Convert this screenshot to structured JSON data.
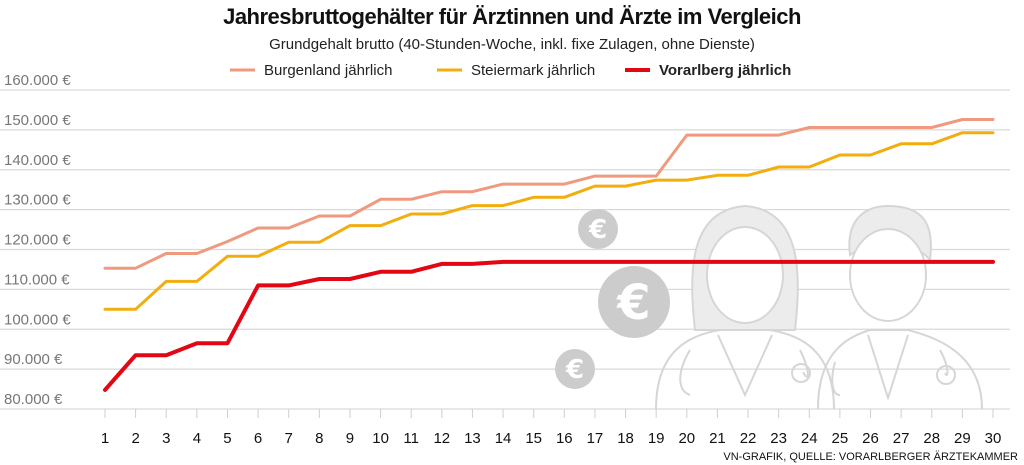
{
  "chart_data": {
    "type": "line",
    "title": "Jahresbruttogehälter für Ärztinnen und Ärzte im Vergleich",
    "subtitle": "Grundgehalt brutto (40-Stunden-Woche, inkl. fixe Zulagen, ohne Dienste)",
    "source": "VN-GRAFIK, QUELLE: VORARLBERGER ÄRZTEKAMMER",
    "xlabel": "",
    "ylabel": "",
    "x": [
      1,
      2,
      3,
      4,
      5,
      6,
      7,
      8,
      9,
      10,
      11,
      12,
      13,
      14,
      15,
      16,
      17,
      18,
      19,
      20,
      21,
      22,
      23,
      24,
      25,
      26,
      27,
      28,
      29,
      30
    ],
    "ylim": [
      80000,
      160000
    ],
    "yticks": [
      80000,
      90000,
      100000,
      110000,
      120000,
      130000,
      140000,
      150000,
      160000
    ],
    "ytick_labels": [
      "80.000 €",
      "90.000 €",
      "100.000 €",
      "110.000 €",
      "120.000 €",
      "130.000 €",
      "140.000 €",
      "150.000 €",
      "160.000 €"
    ],
    "grid": true,
    "legend_position": "top",
    "series": [
      {
        "name": "Burgenland jährlich",
        "color": "#ef9a7e",
        "bold": false,
        "values": [
          115300,
          115300,
          119000,
          119000,
          122000,
          125400,
          125400,
          128400,
          128400,
          132600,
          132600,
          134500,
          134500,
          136400,
          136400,
          136400,
          138400,
          138400,
          138400,
          148700,
          148700,
          148700,
          148700,
          150600,
          150600,
          150600,
          150600,
          150600,
          152600,
          152600
        ]
      },
      {
        "name": "Steiermark jährlich",
        "color": "#f2ad0f",
        "bold": false,
        "values": [
          105000,
          105000,
          112000,
          112000,
          118300,
          118300,
          121800,
          121800,
          126000,
          126000,
          128900,
          128900,
          131000,
          131000,
          133100,
          133100,
          135900,
          135900,
          137400,
          137400,
          138600,
          138600,
          140700,
          140700,
          143700,
          143700,
          146500,
          146500,
          149300,
          149300
        ]
      },
      {
        "name": "Vorarlberg jährlich",
        "color": "#e30613",
        "bold": true,
        "values": [
          84800,
          93500,
          93500,
          96500,
          96500,
          111000,
          111000,
          112600,
          112600,
          114400,
          114400,
          116400,
          116400,
          116900,
          116900,
          116900,
          116900,
          116900,
          116900,
          116900,
          116900,
          116900,
          116900,
          116900,
          116900,
          116900,
          116900,
          116900,
          116900,
          116900
        ]
      }
    ]
  },
  "decor": {
    "coin_icon": "euro-coin",
    "figure_icons": [
      "female-doctor",
      "male-doctor"
    ],
    "icon_color": "#cccccc"
  }
}
